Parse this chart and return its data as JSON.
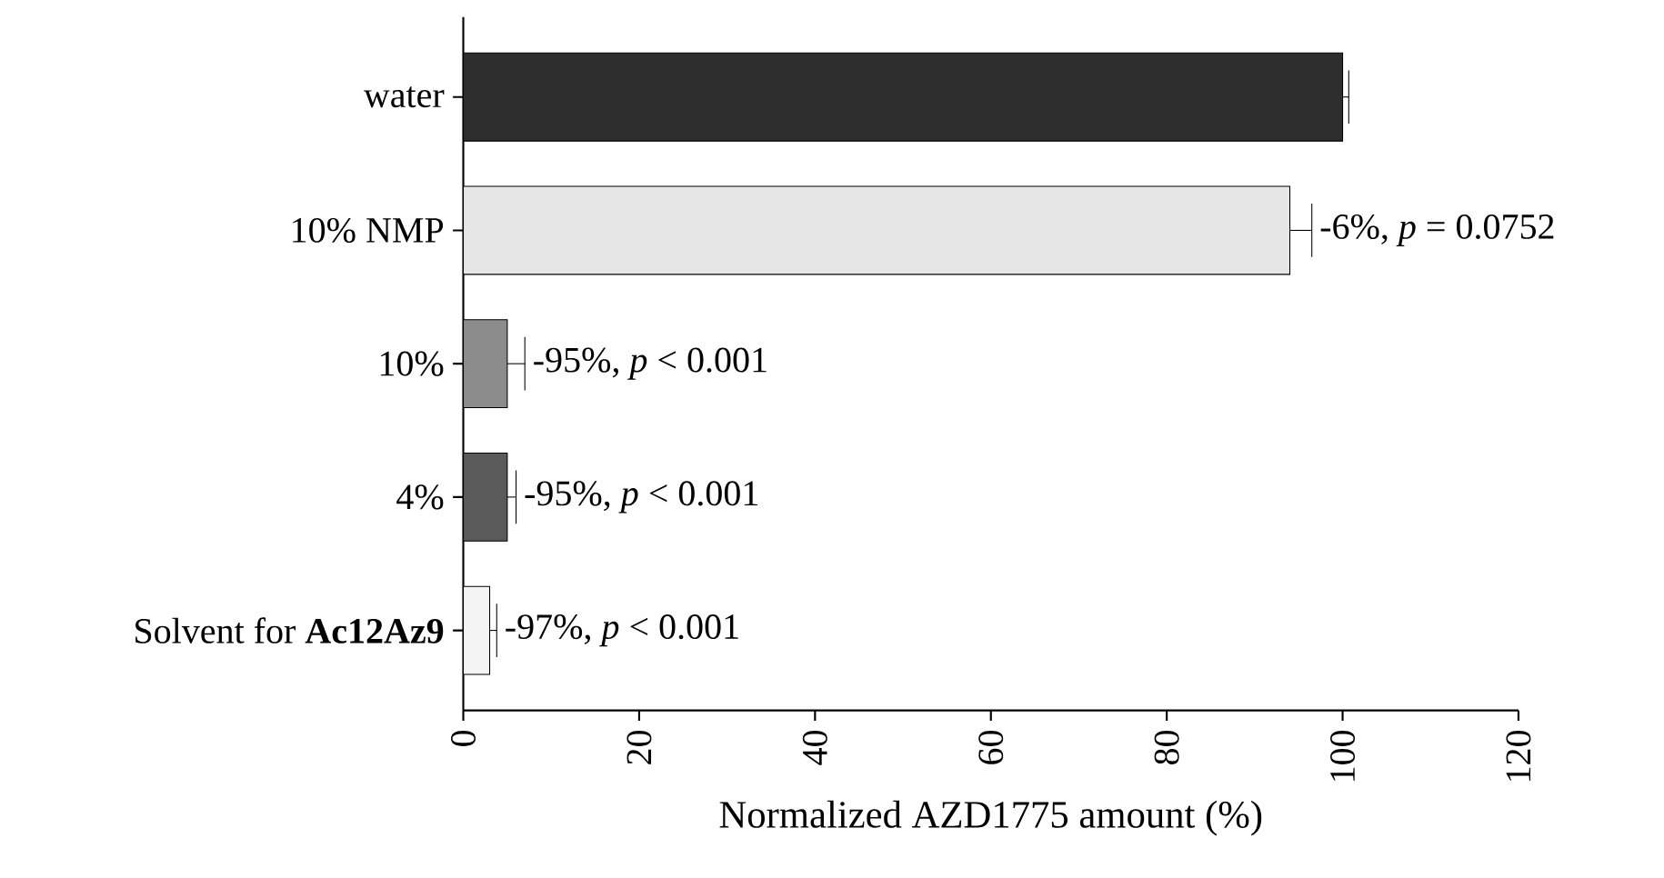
{
  "chart_data": {
    "type": "bar",
    "orientation": "horizontal",
    "categories": [
      "water",
      "10% NMP",
      "10%",
      "4%",
      "Solvent for **Ac12Az9**"
    ],
    "values": [
      100,
      94,
      5,
      5,
      3
    ],
    "errors": [
      [
        100,
        100.7
      ],
      [
        94,
        96.5
      ],
      [
        5,
        7
      ],
      [
        5,
        6
      ],
      [
        3,
        3.8
      ]
    ],
    "colors": [
      "#2e2e2e",
      "#e6e6e6",
      "#8c8c8c",
      "#5a5a5a",
      "#f4f4f4"
    ],
    "xlim": [
      0,
      120
    ],
    "xticks": [
      0,
      20,
      40,
      60,
      80,
      100,
      120
    ],
    "xlabel": "Normalized AZD1775 amount (%)",
    "annotations": [
      {
        "text": "-6%, *p* = 0.0752",
        "x": 96.5,
        "y": "10% NMP"
      },
      {
        "text": "-95%, *p* < 0.001",
        "x": 7,
        "y": "10%"
      },
      {
        "text": "-95%, *p* < 0.001",
        "x": 6,
        "y": "4%"
      },
      {
        "text": "-97%, *p* < 0.001",
        "x": 3.8,
        "y": "Solvent for **Ac12Az9**"
      }
    ]
  }
}
